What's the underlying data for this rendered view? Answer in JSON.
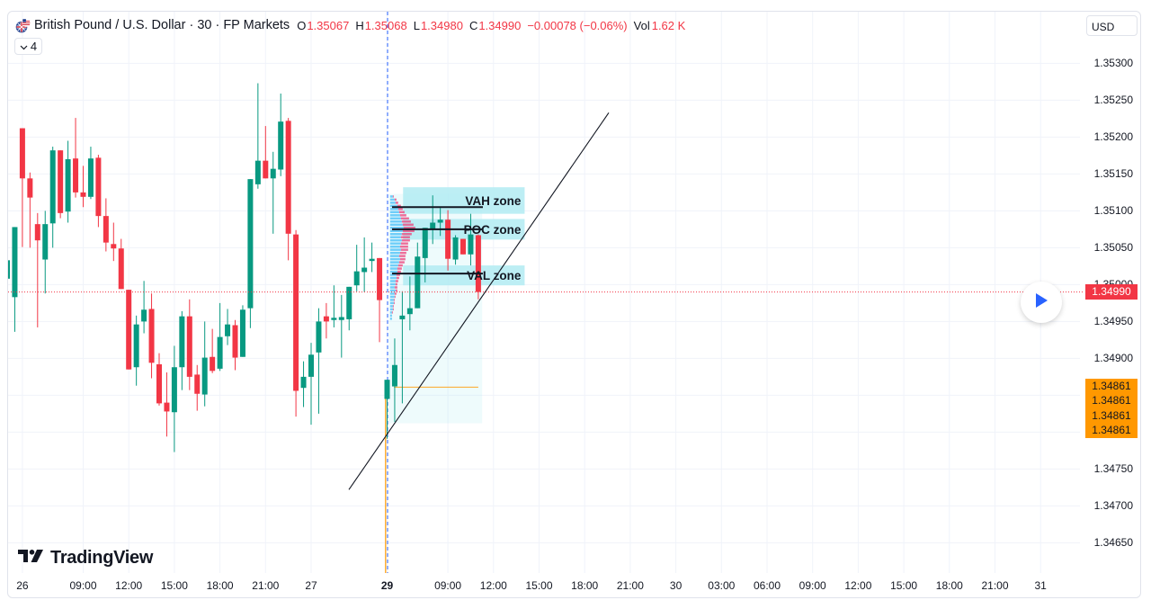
{
  "header": {
    "title": "British Pound / U.S. Dollar · 30 · FP Markets",
    "flag_icon": "gbp-usd-flag-icon",
    "ohlc": {
      "o_label": "O",
      "o_value": "1.35067",
      "h_label": "H",
      "h_value": "1.35068",
      "l_label": "L",
      "l_value": "1.34980",
      "c_label": "C",
      "c_value": "1.34990",
      "change": "−0.00078 (−0.06%)",
      "vol_label": "Vol",
      "vol_value": "1.62 K"
    },
    "indicators_toggle": {
      "icon": "chevron-down-icon",
      "count": "4"
    }
  },
  "currency_button": {
    "label": "USD"
  },
  "logo": {
    "text": "TradingView"
  },
  "play_button": {
    "icon": "play-icon"
  },
  "colors": {
    "up": "#089981",
    "down": "#f23645",
    "grid": "#f0f3fa",
    "accent_blue": "#2962ff",
    "orange": "#ff9800",
    "zone": "#b2ebf2",
    "profile_buy": "#4fc3f7",
    "profile_sell": "#ec407a",
    "text": "#131722"
  },
  "price_axis": {
    "tick_labels": [
      {
        "label": "1.35300",
        "price": 1.353
      },
      {
        "label": "1.35250",
        "price": 1.3525
      },
      {
        "label": "1.35200",
        "price": 1.352
      },
      {
        "label": "1.35150",
        "price": 1.3515
      },
      {
        "label": "1.35100",
        "price": 1.351
      },
      {
        "label": "1.35050",
        "price": 1.3505
      },
      {
        "label": "1.35000",
        "price": 1.35
      },
      {
        "label": "1.34950",
        "price": 1.3495
      },
      {
        "label": "1.34900",
        "price": 1.349
      },
      {
        "label": "1.34750",
        "price": 1.3475
      },
      {
        "label": "1.34700",
        "price": 1.347
      },
      {
        "label": "1.34650",
        "price": 1.3465
      }
    ],
    "current_price_label": {
      "label": "1.34990",
      "price": 1.3499
    },
    "alert_labels": [
      {
        "label": "1.34861",
        "price": 1.34861
      },
      {
        "label": "1.34861",
        "price": 1.34861
      },
      {
        "label": "1.34861",
        "price": 1.34861
      },
      {
        "label": "1.34861",
        "price": 1.34861
      }
    ]
  },
  "chart_data": {
    "type": "candlestick",
    "title": "British Pound / U.S. Dollar · 30 · FP Markets",
    "xlabel": "",
    "ylabel": "USD",
    "ylim": [
      1.34609,
      1.3537
    ],
    "grid": true,
    "grid_prices": [
      1.353,
      1.3525,
      1.352,
      1.3515,
      1.351,
      1.3505,
      1.35,
      1.3495,
      1.349,
      1.3485,
      1.348,
      1.3475,
      1.347,
      1.3465
    ],
    "x_ticks": [
      {
        "label": "26",
        "bar": 2
      },
      {
        "label": "09:00",
        "bar": 10
      },
      {
        "label": "12:00",
        "bar": 16
      },
      {
        "label": "15:00",
        "bar": 22
      },
      {
        "label": "18:00",
        "bar": 28
      },
      {
        "label": "21:00",
        "bar": 34
      },
      {
        "label": "27",
        "bar": 40
      },
      {
        "label": "29",
        "bar": 50,
        "bold": true
      },
      {
        "label": "09:00",
        "bar": 58
      },
      {
        "label": "12:00",
        "bar": 64
      },
      {
        "label": "15:00",
        "bar": 70
      },
      {
        "label": "18:00",
        "bar": 76
      },
      {
        "label": "21:00",
        "bar": 82
      },
      {
        "label": "30",
        "bar": 88
      },
      {
        "label": "03:00",
        "bar": 94
      },
      {
        "label": "06:00",
        "bar": 100
      },
      {
        "label": "09:00",
        "bar": 106
      },
      {
        "label": "12:00",
        "bar": 112
      },
      {
        "label": "15:00",
        "bar": 118
      },
      {
        "label": "18:00",
        "bar": 124
      },
      {
        "label": "21:00",
        "bar": 130
      },
      {
        "label": "31",
        "bar": 136
      }
    ],
    "candle_fields": [
      "open",
      "high",
      "low",
      "close"
    ],
    "candles": [
      [
        1.35008,
        1.35033,
        1.35008,
        1.35033
      ],
      [
        1.34983,
        1.35078,
        1.34936,
        1.35078
      ],
      [
        1.35212,
        1.35212,
        1.35051,
        1.35144
      ],
      [
        1.35144,
        1.35152,
        1.3505,
        1.35118
      ],
      [
        1.35082,
        1.35097,
        1.34942,
        1.3506
      ],
      [
        1.35034,
        1.351,
        1.34988,
        1.35082
      ],
      [
        1.35083,
        1.35187,
        1.3505,
        1.35182
      ],
      [
        1.35182,
        1.35182,
        1.3509,
        1.35097
      ],
      [
        1.35099,
        1.35195,
        1.35084,
        1.3517
      ],
      [
        1.35171,
        1.35226,
        1.35118,
        1.35125
      ],
      [
        1.35125,
        1.35161,
        1.35105,
        1.35119
      ],
      [
        1.35119,
        1.35187,
        1.35116,
        1.35171
      ],
      [
        1.35172,
        1.35176,
        1.35078,
        1.35093
      ],
      [
        1.35093,
        1.35117,
        1.35045,
        1.35057
      ],
      [
        1.35055,
        1.35084,
        1.35032,
        1.35049
      ],
      [
        1.35049,
        1.35062,
        1.34994,
        1.34994
      ],
      [
        1.34993,
        1.34993,
        1.34885,
        1.34885
      ],
      [
        1.34888,
        1.34958,
        1.34863,
        1.34946
      ],
      [
        1.3495,
        1.35005,
        1.34934,
        1.34966
      ],
      [
        1.34967,
        1.34988,
        1.34873,
        1.34894
      ],
      [
        1.34892,
        1.34907,
        1.34836,
        1.34839
      ],
      [
        1.3484,
        1.34881,
        1.34794,
        1.34828
      ],
      [
        1.34827,
        1.34917,
        1.34773,
        1.34888
      ],
      [
        1.34888,
        1.34964,
        1.34857,
        1.34957
      ],
      [
        1.34957,
        1.3498,
        1.34857,
        1.34875
      ],
      [
        1.34878,
        1.34891,
        1.34829,
        1.34852
      ],
      [
        1.34851,
        1.3495,
        1.34835,
        1.34901
      ],
      [
        1.34902,
        1.3494,
        1.3488,
        1.34883
      ],
      [
        1.34886,
        1.34975,
        1.34883,
        1.34929
      ],
      [
        1.3493,
        1.34967,
        1.34918,
        1.34946
      ],
      [
        1.34945,
        1.34952,
        1.34884,
        1.34901
      ],
      [
        1.34902,
        1.34972,
        1.34902,
        1.34966
      ],
      [
        1.34968,
        1.35143,
        1.34941,
        1.35143
      ],
      [
        1.35136,
        1.35273,
        1.3513,
        1.35168
      ],
      [
        1.35168,
        1.35215,
        1.35144,
        1.35144
      ],
      [
        1.35144,
        1.3518,
        1.35069,
        1.35157
      ],
      [
        1.35156,
        1.35259,
        1.35147,
        1.35221
      ],
      [
        1.35222,
        1.35226,
        1.35033,
        1.35069
      ],
      [
        1.35068,
        1.35074,
        1.34821,
        1.34856
      ],
      [
        1.3486,
        1.34896,
        1.34834,
        1.34875
      ],
      [
        1.34875,
        1.34921,
        1.3481,
        1.34905
      ],
      [
        1.34908,
        1.34968,
        1.34825,
        1.3495
      ],
      [
        1.34957,
        1.34975,
        1.34927,
        1.3495
      ],
      [
        1.34952,
        1.34999,
        1.34942,
        1.34955
      ],
      [
        1.34952,
        1.34986,
        1.34901,
        1.34956
      ],
      [
        1.34953,
        1.34997,
        1.34938,
        1.34997
      ],
      [
        1.34999,
        1.35054,
        1.34991,
        1.35018
      ],
      [
        1.35017,
        1.35064,
        1.3499,
        1.35023
      ],
      [
        1.35032,
        1.35057,
        1.35017,
        1.35035
      ],
      [
        1.35036,
        1.35036,
        1.34922,
        1.34979
      ],
      [
        1.34845,
        1.34871,
        1.34791,
        1.34871
      ],
      [
        1.34862,
        1.34927,
        1.34814,
        1.34891
      ],
      [
        1.34953,
        1.34991,
        1.34839,
        1.34958
      ],
      [
        1.3496,
        1.35011,
        1.34938,
        1.34968
      ],
      [
        1.34968,
        1.35057,
        1.34968,
        1.35038
      ],
      [
        1.35036,
        1.35077,
        1.35003,
        1.35077
      ],
      [
        1.35075,
        1.35121,
        1.35055,
        1.35084
      ],
      [
        1.35084,
        1.35104,
        1.35066,
        1.35088
      ],
      [
        1.35088,
        1.35101,
        1.35019,
        1.35035
      ],
      [
        1.35034,
        1.35067,
        1.35027,
        1.35064
      ],
      [
        1.35062,
        1.35062,
        1.35041,
        1.35041
      ],
      [
        1.35041,
        1.35096,
        1.35026,
        1.35068
      ],
      [
        1.35067,
        1.35068,
        1.3498,
        1.3499
      ]
    ],
    "last_price": 1.3499,
    "drawings": {
      "value_area_box": {
        "bar_from": 50.2,
        "bar_to": 62.5,
        "price_top": 1.35123,
        "price_bottom": 1.34812
      },
      "zones": [
        {
          "label": "VAH zone",
          "bar_from": 52.1,
          "bar_to": 68.1,
          "price_top": 1.35132,
          "price_bottom": 1.35096
        },
        {
          "label": "POC zone",
          "bar_from": 52.1,
          "bar_to": 68.1,
          "price_top": 1.35089,
          "price_bottom": 1.35061
        },
        {
          "label": "VAL zone",
          "bar_from": 52.1,
          "bar_to": 68.1,
          "price_top": 1.35026,
          "price_bottom": 1.34999
        }
      ],
      "levels": [
        {
          "name": "VAH",
          "price": 1.35105,
          "bar_from": 50.65,
          "bar_to": 62.6
        },
        {
          "name": "POC",
          "price": 1.35075,
          "bar_from": 50.65,
          "bar_to": 62.6
        },
        {
          "name": "VAL",
          "price": 1.35015,
          "bar_from": 50.65,
          "bar_to": 62.6
        }
      ],
      "trend_line": {
        "bar_from": 44.97,
        "price_from": 1.34722,
        "bar_to": 79.17,
        "price_to": 1.35233
      },
      "session_start_line": {
        "bar": 50.06
      },
      "anchor_line": {
        "bar": 49.8,
        "price_from": 1.34861
      },
      "anchor_level": {
        "price": 1.34861,
        "bar_from": 50.9,
        "bar_to": 62.0
      },
      "volume_profile": {
        "bar_from": 50.4,
        "price_top": 1.35121,
        "price_bottom": 1.34951,
        "rows_buy_sell": [
          [
            3,
            1
          ],
          [
            5,
            2
          ],
          [
            6,
            3
          ],
          [
            8,
            4
          ],
          [
            9,
            5
          ],
          [
            10,
            6
          ],
          [
            11,
            7
          ],
          [
            12,
            9
          ],
          [
            13,
            10
          ],
          [
            14,
            12
          ],
          [
            15,
            13
          ],
          [
            14,
            13
          ],
          [
            13,
            11
          ],
          [
            12,
            10
          ],
          [
            13,
            9
          ],
          [
            12,
            8
          ],
          [
            11,
            9
          ],
          [
            12,
            8
          ],
          [
            11,
            7
          ],
          [
            10,
            7
          ],
          [
            11,
            6
          ],
          [
            10,
            6
          ],
          [
            9,
            5
          ],
          [
            8,
            5
          ],
          [
            8,
            4
          ],
          [
            7,
            4
          ],
          [
            7,
            3
          ],
          [
            6,
            3
          ],
          [
            6,
            2
          ],
          [
            5,
            3
          ],
          [
            6,
            2
          ],
          [
            5,
            2
          ],
          [
            5,
            1
          ],
          [
            4,
            1
          ],
          [
            4,
            1
          ],
          [
            3,
            1
          ],
          [
            3,
            1
          ],
          [
            2,
            1
          ],
          [
            2,
            0
          ],
          [
            2,
            0
          ]
        ]
      }
    }
  }
}
